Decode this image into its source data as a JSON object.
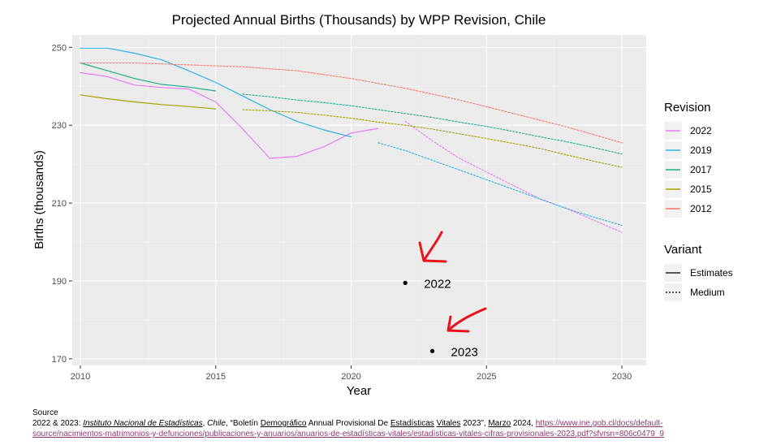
{
  "chart_data": {
    "type": "line",
    "title": "Projected Annual Births (Thousands) by WPP Revision, Chile",
    "xlabel": "Year",
    "ylabel": "Births (thousands)",
    "xlim": [
      2009.7,
      2030.9
    ],
    "ylim": [
      168.3,
      253.2
    ],
    "x_ticks": [
      2010,
      2015,
      2020,
      2025,
      2030
    ],
    "y_ticks": [
      170,
      190,
      210,
      230,
      250
    ],
    "grid": true,
    "series": [
      {
        "name": "2022",
        "variant": "Estimates",
        "color": "#e77bf3",
        "x": [
          2010,
          2011,
          2012,
          2013,
          2014,
          2015,
          2016,
          2017,
          2018,
          2019,
          2020,
          2021
        ],
        "y": [
          243.5,
          242.5,
          240.3,
          239.7,
          239.3,
          236.0,
          229.0,
          221.5,
          222.0,
          224.5,
          228.0,
          229.2
        ]
      },
      {
        "name": "2022",
        "variant": "Medium",
        "color": "#e77bf3",
        "x": [
          2022,
          2023,
          2024,
          2025,
          2026,
          2027,
          2028,
          2029,
          2030
        ],
        "y": [
          231.0,
          226.0,
          221.5,
          218.0,
          214.5,
          211.0,
          208.5,
          205.5,
          202.5
        ]
      },
      {
        "name": "2019",
        "variant": "Estimates",
        "color": "#33b2e5",
        "x": [
          2010,
          2011,
          2012,
          2013,
          2014,
          2015,
          2016,
          2017,
          2018,
          2019,
          2020
        ],
        "y": [
          249.8,
          249.8,
          248.5,
          246.8,
          244.0,
          241.0,
          237.5,
          234.0,
          231.0,
          228.8,
          227.0
        ]
      },
      {
        "name": "2019",
        "variant": "Medium",
        "color": "#33b2e5",
        "x": [
          2021,
          2022,
          2023,
          2024,
          2025,
          2026,
          2027,
          2028,
          2029,
          2030
        ],
        "y": [
          225.5,
          223.5,
          221.0,
          218.5,
          216.0,
          213.5,
          211.0,
          208.5,
          206.3,
          204.3
        ]
      },
      {
        "name": "2017",
        "variant": "Estimates",
        "color": "#21ae8a",
        "x": [
          2010,
          2011,
          2012,
          2013,
          2014,
          2015
        ],
        "y": [
          246.0,
          244.0,
          242.0,
          240.5,
          239.8,
          238.8
        ]
      },
      {
        "name": "2017",
        "variant": "Medium",
        "color": "#21ae8a",
        "x": [
          2016,
          2017,
          2018,
          2019,
          2020,
          2021,
          2022,
          2023,
          2024,
          2025,
          2026,
          2027,
          2028,
          2029,
          2030
        ],
        "y": [
          238.0,
          237.3,
          236.5,
          235.8,
          235.0,
          234.0,
          233.0,
          232.0,
          230.8,
          229.7,
          228.4,
          227.0,
          225.7,
          224.2,
          222.6
        ]
      },
      {
        "name": "2015",
        "variant": "Estimates",
        "color": "#a3a500",
        "x": [
          2010,
          2011,
          2012,
          2013,
          2014,
          2015
        ],
        "y": [
          237.8,
          236.8,
          236.0,
          235.3,
          234.8,
          234.2
        ]
      },
      {
        "name": "2015",
        "variant": "Medium",
        "color": "#a3a500",
        "x": [
          2016,
          2017,
          2018,
          2019,
          2020,
          2021,
          2022,
          2023,
          2024,
          2025,
          2026,
          2027,
          2028,
          2029,
          2030
        ],
        "y": [
          234.0,
          233.7,
          233.3,
          232.6,
          231.8,
          230.8,
          230.0,
          229.0,
          227.8,
          226.6,
          225.3,
          224.0,
          222.3,
          220.7,
          219.2
        ]
      },
      {
        "name": "2012",
        "variant": "Medium",
        "color": "#f8766d",
        "x": [
          2010,
          2012,
          2014,
          2016,
          2018,
          2020,
          2022,
          2024,
          2026,
          2028,
          2030
        ],
        "y": [
          246.0,
          246.0,
          245.5,
          245.0,
          244.0,
          242.0,
          239.5,
          236.5,
          233.0,
          229.5,
          225.5
        ]
      }
    ],
    "points": [
      {
        "x": 2022,
        "y": 189.5,
        "label": "2022"
      },
      {
        "x": 2023,
        "y": 172.0,
        "label": "2023"
      }
    ],
    "legend": {
      "position": "right",
      "revision_title": "Revision",
      "revision_items": [
        {
          "label": "2022",
          "color": "#e77bf3"
        },
        {
          "label": "2019",
          "color": "#33b2e5"
        },
        {
          "label": "2017",
          "color": "#21ae8a"
        },
        {
          "label": "2015",
          "color": "#a3a500"
        },
        {
          "label": "2012",
          "color": "#f8766d"
        }
      ],
      "variant_title": "Variant",
      "variant_items": [
        {
          "label": "Estimates",
          "style": "solid"
        },
        {
          "label": "Medium",
          "style": "dotted"
        }
      ]
    },
    "annotations": [
      {
        "type": "hand-drawn-arrow",
        "color": "#e8141b",
        "points_to": "2022"
      },
      {
        "type": "hand-drawn-arrow",
        "color": "#e8141b",
        "points_to": "2023"
      }
    ]
  },
  "source": {
    "heading": "Source",
    "prefix": "2022 & 2023: ",
    "institute": "Instituto Nacional de Estadísticas",
    "sep": ", ",
    "country": "Chile",
    "middle_a": ", “Boletín ",
    "word_demografico": "Demográfico",
    "middle_b": " Annual Provisional De ",
    "word_estadisticas": "Estadísticas",
    "space": " ",
    "word_vitales": "Vitales",
    "middle_c": " 2023”, ",
    "word_marzo": "Marzo",
    "middle_d": " 2024, ",
    "url_line1": "https://www.ine.gob.cl/docs/default-",
    "url_line2": "source/nacimientos-matrimonios-y-defunciones/publicaciones-y-anuarios/anuarios-de-estadísticas-vitales/estadísticas-vitales-cifras-provisionales-2023.pdf?sfvrsn=806c0479_9"
  }
}
